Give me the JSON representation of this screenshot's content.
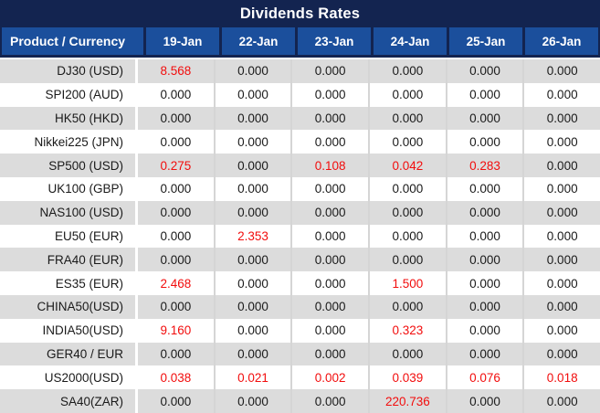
{
  "chart_data": {
    "type": "table",
    "title": "Dividends Rates",
    "header": {
      "product": "Product / Currency",
      "dates": [
        "19-Jan",
        "22-Jan",
        "23-Jan",
        "24-Jan",
        "25-Jan",
        "26-Jan"
      ]
    },
    "rows": [
      {
        "label": "DJ30 (USD)",
        "values": [
          "8.568",
          "0.000",
          "0.000",
          "0.000",
          "0.000",
          "0.000"
        ],
        "red": [
          true,
          false,
          false,
          false,
          false,
          false
        ]
      },
      {
        "label": "SPI200 (AUD)",
        "values": [
          "0.000",
          "0.000",
          "0.000",
          "0.000",
          "0.000",
          "0.000"
        ],
        "red": [
          false,
          false,
          false,
          false,
          false,
          false
        ]
      },
      {
        "label": "HK50 (HKD)",
        "values": [
          "0.000",
          "0.000",
          "0.000",
          "0.000",
          "0.000",
          "0.000"
        ],
        "red": [
          false,
          false,
          false,
          false,
          false,
          false
        ]
      },
      {
        "label": "Nikkei225 (JPN)",
        "values": [
          "0.000",
          "0.000",
          "0.000",
          "0.000",
          "0.000",
          "0.000"
        ],
        "red": [
          false,
          false,
          false,
          false,
          false,
          false
        ]
      },
      {
        "label": "SP500 (USD)",
        "values": [
          "0.275",
          "0.000",
          "0.108",
          "0.042",
          "0.283",
          "0.000"
        ],
        "red": [
          true,
          false,
          true,
          true,
          true,
          false
        ]
      },
      {
        "label": "UK100 (GBP)",
        "values": [
          "0.000",
          "0.000",
          "0.000",
          "0.000",
          "0.000",
          "0.000"
        ],
        "red": [
          false,
          false,
          false,
          false,
          false,
          false
        ]
      },
      {
        "label": "NAS100 (USD)",
        "values": [
          "0.000",
          "0.000",
          "0.000",
          "0.000",
          "0.000",
          "0.000"
        ],
        "red": [
          false,
          false,
          false,
          false,
          false,
          false
        ]
      },
      {
        "label": "EU50 (EUR)",
        "values": [
          "0.000",
          "2.353",
          "0.000",
          "0.000",
          "0.000",
          "0.000"
        ],
        "red": [
          false,
          true,
          false,
          false,
          false,
          false
        ]
      },
      {
        "label": "FRA40 (EUR)",
        "values": [
          "0.000",
          "0.000",
          "0.000",
          "0.000",
          "0.000",
          "0.000"
        ],
        "red": [
          false,
          false,
          false,
          false,
          false,
          false
        ]
      },
      {
        "label": "ES35 (EUR)",
        "values": [
          "2.468",
          "0.000",
          "0.000",
          "1.500",
          "0.000",
          "0.000"
        ],
        "red": [
          true,
          false,
          false,
          true,
          false,
          false
        ]
      },
      {
        "label": "CHINA50(USD)",
        "values": [
          "0.000",
          "0.000",
          "0.000",
          "0.000",
          "0.000",
          "0.000"
        ],
        "red": [
          false,
          false,
          false,
          false,
          false,
          false
        ]
      },
      {
        "label": "INDIA50(USD)",
        "values": [
          "9.160",
          "0.000",
          "0.000",
          "0.323",
          "0.000",
          "0.000"
        ],
        "red": [
          true,
          false,
          false,
          true,
          false,
          false
        ]
      },
      {
        "label": "GER40 / EUR",
        "values": [
          "0.000",
          "0.000",
          "0.000",
          "0.000",
          "0.000",
          "0.000"
        ],
        "red": [
          false,
          false,
          false,
          false,
          false,
          false
        ]
      },
      {
        "label": "US2000(USD)",
        "values": [
          "0.038",
          "0.021",
          "0.002",
          "0.039",
          "0.076",
          "0.018"
        ],
        "red": [
          true,
          true,
          true,
          true,
          true,
          true
        ]
      },
      {
        "label": "SA40(ZAR)",
        "values": [
          "0.000",
          "0.000",
          "0.000",
          "220.736",
          "0.000",
          "0.000"
        ],
        "red": [
          false,
          false,
          false,
          true,
          false,
          false
        ]
      }
    ]
  },
  "colors": {
    "title_navy": "#132450",
    "header_blue": "#1B4F9C",
    "stripe_gray": "#DCDCDC",
    "value_red": "#F20D0D",
    "text_dark": "#1A1A1A",
    "header_text": "#FFFFFF"
  }
}
